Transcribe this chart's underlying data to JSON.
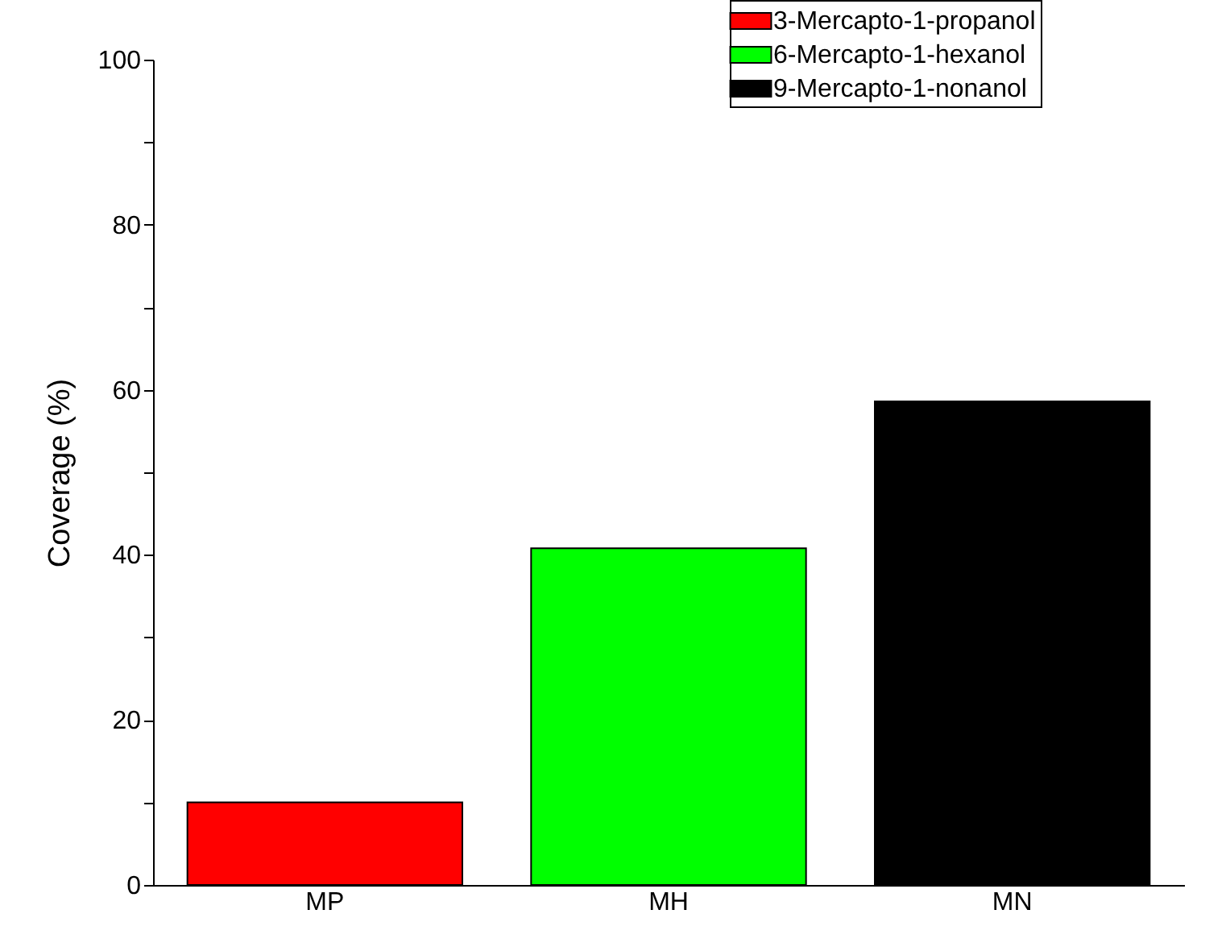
{
  "chart_data": {
    "type": "bar",
    "ylabel": "Coverage (%)",
    "categories": [
      "MP",
      "MH",
      "MN"
    ],
    "series": [
      {
        "name": "3-Mercapto-1-propanol",
        "color": "#ff0000",
        "values": [
          10,
          null,
          null
        ]
      },
      {
        "name": "6-Mercapto-1-hexanol",
        "color": "#00ff00",
        "values": [
          null,
          40.8,
          null
        ]
      },
      {
        "name": "9-Mercapto-1-nonanol",
        "color": "#000000",
        "values": [
          null,
          null,
          58.6
        ]
      }
    ],
    "ylim": [
      0,
      100
    ],
    "yticks": [
      0,
      {
        "value": 10,
        "label": null
      },
      20,
      {
        "value": 30,
        "label": null
      },
      40,
      {
        "value": 50,
        "label": null
      },
      60,
      {
        "value": 70,
        "label": null
      },
      80,
      {
        "value": 90,
        "label": null
      },
      100
    ],
    "grid": false,
    "legend": "top right"
  }
}
